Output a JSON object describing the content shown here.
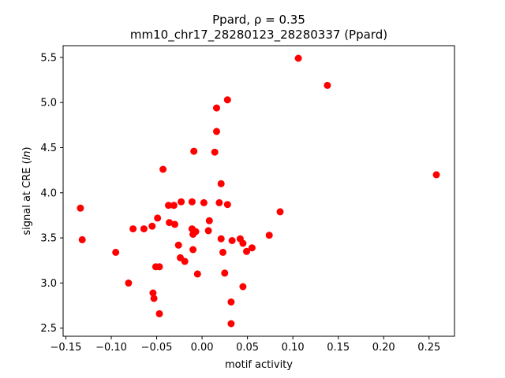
{
  "chart_data": {
    "type": "scatter",
    "title_line1": "Ppard, ρ = 0.35",
    "title_line2": "mm10_chr17_28280123_28280337 (Ppard)",
    "xlabel": "motif activity",
    "ylabel": "signal at CRE (ln)",
    "xlim": [
      -0.153,
      0.278
    ],
    "ylim": [
      2.41,
      5.63
    ],
    "xticks": [
      -0.15,
      -0.1,
      -0.05,
      0.0,
      0.05,
      0.1,
      0.15,
      0.2,
      0.25
    ],
    "xtick_labels": [
      "−0.15",
      "−0.10",
      "−0.05",
      "0.00",
      "0.05",
      "0.10",
      "0.15",
      "0.20",
      "0.25"
    ],
    "yticks": [
      2.5,
      3.0,
      3.5,
      4.0,
      4.5,
      5.0,
      5.5
    ],
    "ytick_labels": [
      "2.5",
      "3.0",
      "3.5",
      "4.0",
      "4.5",
      "5.0",
      "5.5"
    ],
    "marker_color": "#ff0000",
    "grid": false,
    "points": [
      {
        "x": -0.134,
        "y": 3.83
      },
      {
        "x": -0.132,
        "y": 3.48
      },
      {
        "x": -0.095,
        "y": 3.34
      },
      {
        "x": -0.081,
        "y": 3.0
      },
      {
        "x": -0.076,
        "y": 3.6
      },
      {
        "x": -0.064,
        "y": 3.6
      },
      {
        "x": -0.055,
        "y": 3.63
      },
      {
        "x": -0.054,
        "y": 2.89
      },
      {
        "x": -0.053,
        "y": 2.83
      },
      {
        "x": -0.051,
        "y": 3.18
      },
      {
        "x": -0.049,
        "y": 3.72
      },
      {
        "x": -0.047,
        "y": 3.18
      },
      {
        "x": -0.047,
        "y": 2.66
      },
      {
        "x": -0.043,
        "y": 4.26
      },
      {
        "x": -0.037,
        "y": 3.86
      },
      {
        "x": -0.036,
        "y": 3.67
      },
      {
        "x": -0.031,
        "y": 3.86
      },
      {
        "x": -0.03,
        "y": 3.65
      },
      {
        "x": -0.026,
        "y": 3.42
      },
      {
        "x": -0.024,
        "y": 3.28
      },
      {
        "x": -0.023,
        "y": 3.9
      },
      {
        "x": -0.019,
        "y": 3.24
      },
      {
        "x": -0.011,
        "y": 3.9
      },
      {
        "x": -0.011,
        "y": 3.6
      },
      {
        "x": -0.01,
        "y": 3.54
      },
      {
        "x": -0.01,
        "y": 3.37
      },
      {
        "x": -0.009,
        "y": 4.46
      },
      {
        "x": -0.007,
        "y": 3.57
      },
      {
        "x": -0.005,
        "y": 3.1
      },
      {
        "x": 0.002,
        "y": 3.89
      },
      {
        "x": 0.007,
        "y": 3.58
      },
      {
        "x": 0.008,
        "y": 3.69
      },
      {
        "x": 0.014,
        "y": 4.45
      },
      {
        "x": 0.016,
        "y": 4.94
      },
      {
        "x": 0.016,
        "y": 4.68
      },
      {
        "x": 0.019,
        "y": 3.89
      },
      {
        "x": 0.021,
        "y": 4.1
      },
      {
        "x": 0.021,
        "y": 3.49
      },
      {
        "x": 0.023,
        "y": 3.34
      },
      {
        "x": 0.025,
        "y": 3.11
      },
      {
        "x": 0.028,
        "y": 5.03
      },
      {
        "x": 0.028,
        "y": 3.87
      },
      {
        "x": 0.032,
        "y": 2.79
      },
      {
        "x": 0.032,
        "y": 2.55
      },
      {
        "x": 0.033,
        "y": 3.47
      },
      {
        "x": 0.042,
        "y": 3.49
      },
      {
        "x": 0.045,
        "y": 2.96
      },
      {
        "x": 0.045,
        "y": 3.44
      },
      {
        "x": 0.049,
        "y": 3.35
      },
      {
        "x": 0.055,
        "y": 3.39
      },
      {
        "x": 0.074,
        "y": 3.53
      },
      {
        "x": 0.086,
        "y": 3.79
      },
      {
        "x": 0.106,
        "y": 5.49
      },
      {
        "x": 0.138,
        "y": 5.19
      },
      {
        "x": 0.258,
        "y": 4.2
      }
    ]
  }
}
